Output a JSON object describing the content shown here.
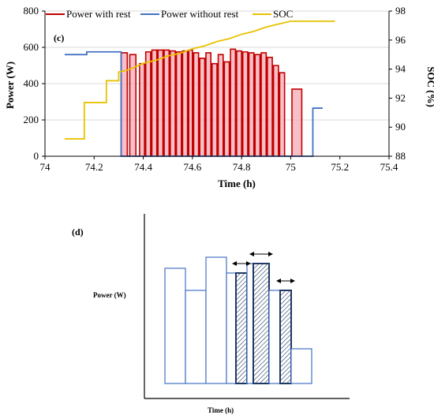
{
  "chart_data": [
    {
      "type": "line",
      "panel_label": "(c)",
      "xlabel": "Time (h)",
      "ylabel": "Power (W)",
      "y2label": "SOC (%)",
      "xlim": [
        74,
        75.4
      ],
      "ylim": [
        0,
        800
      ],
      "y2lim": [
        88,
        98
      ],
      "xticks": [
        "74",
        "74.2",
        "74.4",
        "74.6",
        "74.8",
        "75",
        "75.2",
        "75.4"
      ],
      "yticks": [
        "0",
        "200",
        "400",
        "600",
        "800"
      ],
      "y2ticks": [
        "88",
        "90",
        "92",
        "94",
        "96",
        "98"
      ],
      "legend": [
        "Power with rest",
        "Power without rest",
        "SOC"
      ],
      "colors": {
        "with_rest": "#c00000",
        "with_rest_fill": "#f4a9b4",
        "without_rest": "#4472c4",
        "soc": "#e8c200"
      },
      "series": [
        {
          "name": "Power with rest",
          "pulses": [
            {
              "start": 74.31,
              "end": 74.335,
              "value": 570
            },
            {
              "start": 74.345,
              "end": 74.37,
              "value": 560
            },
            {
              "start": 74.385,
              "end": 74.405,
              "value": 510
            },
            {
              "start": 74.41,
              "end": 74.43,
              "value": 575
            },
            {
              "start": 74.435,
              "end": 74.455,
              "value": 585
            },
            {
              "start": 74.46,
              "end": 74.48,
              "value": 585
            },
            {
              "start": 74.485,
              "end": 74.505,
              "value": 585
            },
            {
              "start": 74.51,
              "end": 74.53,
              "value": 580
            },
            {
              "start": 74.535,
              "end": 74.555,
              "value": 575
            },
            {
              "start": 74.56,
              "end": 74.58,
              "value": 580
            },
            {
              "start": 74.585,
              "end": 74.6,
              "value": 585
            },
            {
              "start": 74.605,
              "end": 74.625,
              "value": 570
            },
            {
              "start": 74.63,
              "end": 74.65,
              "value": 540
            },
            {
              "start": 74.655,
              "end": 74.675,
              "value": 570
            },
            {
              "start": 74.68,
              "end": 74.7,
              "value": 510
            },
            {
              "start": 74.705,
              "end": 74.725,
              "value": 560
            },
            {
              "start": 74.73,
              "end": 74.75,
              "value": 520
            },
            {
              "start": 74.755,
              "end": 74.775,
              "value": 590
            },
            {
              "start": 74.78,
              "end": 74.8,
              "value": 580
            },
            {
              "start": 74.805,
              "end": 74.825,
              "value": 575
            },
            {
              "start": 74.83,
              "end": 74.85,
              "value": 570
            },
            {
              "start": 74.855,
              "end": 74.875,
              "value": 560
            },
            {
              "start": 74.88,
              "end": 74.9,
              "value": 570
            },
            {
              "start": 74.905,
              "end": 74.925,
              "value": 545
            },
            {
              "start": 74.93,
              "end": 74.95,
              "value": 500
            },
            {
              "start": 74.955,
              "end": 74.975,
              "value": 460
            },
            {
              "start": 75.005,
              "end": 75.045,
              "value": 370
            }
          ]
        },
        {
          "name": "Power without rest",
          "x": [
            74.08,
            74.08,
            74.17,
            74.17,
            74.31,
            74.31,
            75.09,
            75.09,
            75.13
          ],
          "y": [
            560,
            560,
            560,
            575,
            575,
            0,
            0,
            265,
            265
          ]
        },
        {
          "name": "SOC",
          "x": [
            74.08,
            74.08,
            74.16,
            74.16,
            74.25,
            74.25,
            74.3,
            74.3,
            74.33,
            74.36,
            74.4,
            74.45,
            74.5,
            74.55,
            74.6,
            74.65,
            74.7,
            74.75,
            74.8,
            74.85,
            74.9,
            74.95,
            75.0,
            75.18
          ],
          "y": [
            89.2,
            89.2,
            89.2,
            91.7,
            91.7,
            93.2,
            93.2,
            93.8,
            93.9,
            94.1,
            94.4,
            94.6,
            94.9,
            95.1,
            95.4,
            95.6,
            95.9,
            96.1,
            96.4,
            96.6,
            96.9,
            97.1,
            97.3,
            97.3
          ]
        }
      ]
    },
    {
      "type": "bar",
      "panel_label": "(d)",
      "xlabel": "Time (h)",
      "ylabel": "Power (W)",
      "bars": [
        {
          "value": 0.73,
          "hatched": false
        },
        {
          "value": 0.59,
          "hatched": false
        },
        {
          "value": 0.8,
          "hatched": false
        },
        {
          "value": 0.7,
          "hatched": false
        },
        {
          "value": 0.7,
          "hatched": true
        },
        {
          "value": 0.76,
          "hatched": false
        },
        {
          "value": 0.76,
          "hatched": true
        },
        {
          "value": 0.59,
          "hatched": false
        },
        {
          "value": 0.59,
          "hatched": true
        },
        {
          "value": 0.22,
          "hatched": false
        }
      ],
      "arrows_above_bars": [
        4,
        6,
        8
      ],
      "colors": {
        "outline": "#4472c4",
        "hatch": "#1f3864"
      }
    }
  ]
}
